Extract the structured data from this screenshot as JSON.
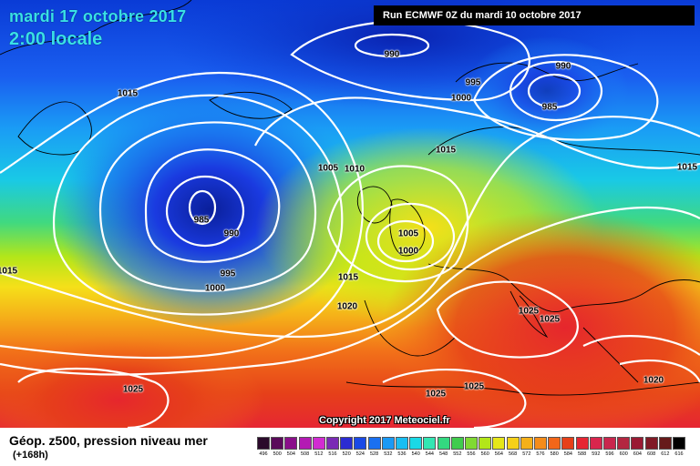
{
  "header": {
    "date": "mardi 17 octobre 2017",
    "time": "2:00 locale",
    "run": "Run ECMWF 0Z du mardi 10 octobre 2017"
  },
  "copyright": "Copyright 2017 Meteociel.fr",
  "footer": {
    "title": "Géop. z500, pression niveau mer",
    "subtitle": "(+168h)"
  },
  "isobar_labels": [
    "990",
    "990",
    "985",
    "995",
    "1000",
    "1015",
    "1005",
    "1010",
    "1015",
    "1015",
    "985",
    "990",
    "995",
    "1000",
    "1005",
    "1000",
    "1015",
    "1020",
    "1025",
    "1025",
    "1025",
    "1025",
    "1020",
    "1015",
    "1025"
  ],
  "legend": {
    "values": [
      "496",
      "500",
      "504",
      "508",
      "512",
      "516",
      "520",
      "524",
      "528",
      "532",
      "536",
      "540",
      "544",
      "548",
      "552",
      "556",
      "560",
      "564",
      "568",
      "572",
      "576",
      "580",
      "584",
      "588",
      "592",
      "596",
      "600",
      "604",
      "608",
      "612",
      "616"
    ],
    "colors": [
      "#2b0a2b",
      "#5a0a5a",
      "#8a0f8a",
      "#b31ab3",
      "#d22bd2",
      "#7a2bb5",
      "#2b2bd2",
      "#1a4ae6",
      "#1a70f0",
      "#1a99f5",
      "#19bdf2",
      "#19d9e6",
      "#33e6b3",
      "#33d980",
      "#40cc4d",
      "#80d933",
      "#b3e619",
      "#e6e619",
      "#f5d019",
      "#f5b019",
      "#f58c19",
      "#f26619",
      "#e64019",
      "#e62633",
      "#d9264d",
      "#c9264d",
      "#b32640",
      "#9a1a33",
      "#801a26",
      "#661a1a",
      "#000000"
    ]
  },
  "map_style": {
    "ocean_colors": [
      "#0a3bd6",
      "#1a5ff0",
      "#1a8cf5",
      "#19c2ef",
      "#33d9b3",
      "#5ad94d",
      "#b3e619",
      "#f2e619",
      "#f5b019",
      "#f27219",
      "#e64019",
      "#e6262d"
    ]
  }
}
